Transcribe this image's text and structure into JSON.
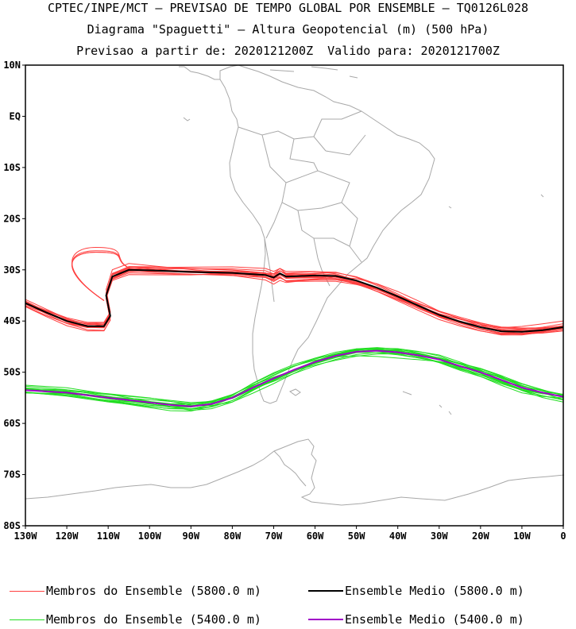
{
  "header": {
    "title_line1": "CPTEC/INPE/MCT — PREVISAO DE TEMPO GLOBAL POR ENSEMBLE — TQ0126L028",
    "title_line2": "Diagrama \"Spaguetti\" — Altura Geopotencial (m) (500 hPa)",
    "title_line3": "Previsao a partir de: 2020121200Z  Valido para: 2020121700Z"
  },
  "map": {
    "lon_range": [
      -130,
      0
    ],
    "lat_range": [
      -80,
      10
    ],
    "lat_ticks": [
      {
        "lat": 10,
        "label": "10N"
      },
      {
        "lat": 0,
        "label": "EQ"
      },
      {
        "lat": -10,
        "label": "10S"
      },
      {
        "lat": -20,
        "label": "20S"
      },
      {
        "lat": -30,
        "label": "30S"
      },
      {
        "lat": -40,
        "label": "40S"
      },
      {
        "lat": -50,
        "label": "50S"
      },
      {
        "lat": -60,
        "label": "60S"
      },
      {
        "lat": -70,
        "label": "70S"
      },
      {
        "lat": -80,
        "label": "80S"
      }
    ],
    "lon_ticks": [
      {
        "lon": -130,
        "label": "130W"
      },
      {
        "lon": -120,
        "label": "120W"
      },
      {
        "lon": -110,
        "label": "110W"
      },
      {
        "lon": -100,
        "label": "100W"
      },
      {
        "lon": -90,
        "label": "90W"
      },
      {
        "lon": -80,
        "label": "80W"
      },
      {
        "lon": -70,
        "label": "70W"
      },
      {
        "lon": -60,
        "label": "60W"
      },
      {
        "lon": -50,
        "label": "50W"
      },
      {
        "lon": -40,
        "label": "40W"
      },
      {
        "lon": -30,
        "label": "30W"
      },
      {
        "lon": -20,
        "label": "20W"
      },
      {
        "lon": -10,
        "label": "10W"
      },
      {
        "lon": 0,
        "label": "0"
      }
    ],
    "colors": {
      "members_5800": "#ff4040",
      "mean_5800": "#000000",
      "members_5400": "#22dd22",
      "mean_5400": "#a000c8",
      "coastline": "#a8a8a8"
    },
    "contours": {
      "mean_5800": [
        [
          -130,
          -36.5
        ],
        [
          -125,
          -38.3
        ],
        [
          -120,
          -40
        ],
        [
          -115,
          -41
        ],
        [
          -111,
          -41
        ],
        [
          -109.5,
          -39
        ],
        [
          -110.5,
          -35
        ],
        [
          -109,
          -31.3
        ],
        [
          -105,
          -30
        ],
        [
          -100,
          -30.1
        ],
        [
          -90,
          -30.4
        ],
        [
          -80,
          -30.6
        ],
        [
          -72,
          -31
        ],
        [
          -70,
          -31.5
        ],
        [
          -68.5,
          -30.7
        ],
        [
          -67,
          -31.3
        ],
        [
          -60,
          -31.1
        ],
        [
          -55,
          -31.2
        ],
        [
          -50,
          -32.1
        ],
        [
          -45,
          -33.5
        ],
        [
          -40,
          -35.2
        ],
        [
          -35,
          -37
        ],
        [
          -30,
          -38.8
        ],
        [
          -25,
          -40.1
        ],
        [
          -20,
          -41.2
        ],
        [
          -15,
          -42
        ],
        [
          -10,
          -42.1
        ],
        [
          -5,
          -41.8
        ],
        [
          0,
          -41.2
        ]
      ],
      "mean_5400": [
        [
          -130,
          -53.5
        ],
        [
          -120,
          -54
        ],
        [
          -110,
          -55
        ],
        [
          -100,
          -55.9
        ],
        [
          -95,
          -56.4
        ],
        [
          -90,
          -56.7
        ],
        [
          -85,
          -56.2
        ],
        [
          -80,
          -55
        ],
        [
          -75,
          -53
        ],
        [
          -70,
          -51.2
        ],
        [
          -65,
          -49.5
        ],
        [
          -60,
          -48
        ],
        [
          -55,
          -46.8
        ],
        [
          -50,
          -46
        ],
        [
          -45,
          -45.8
        ],
        [
          -40,
          -46.1
        ],
        [
          -35,
          -46.7
        ],
        [
          -30,
          -47.5
        ],
        [
          -25,
          -48.8
        ],
        [
          -20,
          -50
        ],
        [
          -15,
          -51.5
        ],
        [
          -10,
          -53
        ],
        [
          -5,
          -54
        ],
        [
          0,
          -54.8
        ]
      ]
    }
  },
  "legend": {
    "members_5800_label": "Membros do Ensemble (5800.0 m)",
    "mean_5800_label": "Ensemble Medio (5800.0 m)",
    "members_5400_label": "Membros do Ensemble (5400.0 m)",
    "mean_5400_label": "Ensemble Medio (5400.0 m)"
  }
}
